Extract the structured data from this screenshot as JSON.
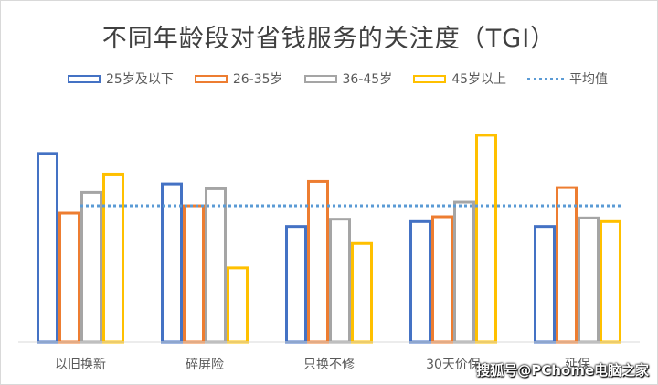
{
  "chart_data": {
    "type": "bar",
    "title": "不同年龄段对省钱服务的关注度（TGI）",
    "categories": [
      "以旧换新",
      "碎屏险",
      "只换不修",
      "30天价保",
      "延保"
    ],
    "series": [
      {
        "name": "25岁及以下",
        "color": "#4472c4",
        "values": [
          155,
          130,
          95,
          99,
          95
        ]
      },
      {
        "name": "26-35岁",
        "color": "#ed7d31",
        "values": [
          106,
          112,
          132,
          103,
          127
        ]
      },
      {
        "name": "36-45岁",
        "color": "#a5a5a5",
        "values": [
          123,
          126,
          101,
          115,
          102
        ]
      },
      {
        "name": "45岁以上",
        "color": "#ffc000",
        "values": [
          138,
          61,
          81,
          170,
          99
        ]
      }
    ],
    "average": {
      "name": "平均值",
      "value": 112,
      "color": "#5b9bd5"
    },
    "ylim": [
      0,
      200
    ],
    "legend_position": "top",
    "grid": false
  },
  "watermark": "搜狐号@PChome电脑之家"
}
